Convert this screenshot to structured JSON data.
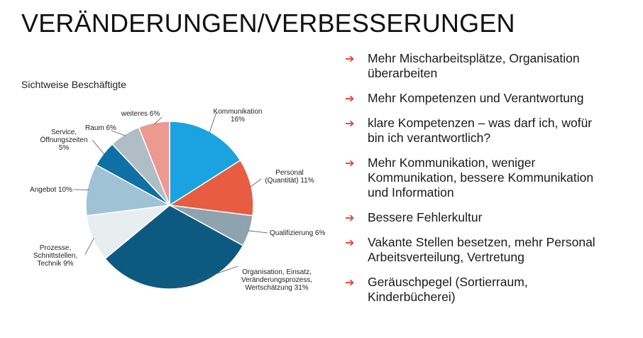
{
  "slide": {
    "title": "VERÄNDERUNGEN/VERBESSERUNGEN"
  },
  "chart_data": {
    "type": "pie",
    "title": "Sichtweise Beschäftigte",
    "slices": [
      {
        "label": [
          "Kommunikation",
          "16%"
        ],
        "value": 16,
        "color": "#1aa3e0"
      },
      {
        "label": [
          "Personal",
          "(Quantität) 11%"
        ],
        "value": 11,
        "color": "#e85c42"
      },
      {
        "label": [
          "Qualifizierung 6%"
        ],
        "value": 6,
        "color": "#8ea3ae"
      },
      {
        "label": [
          "Organisation, Einsatz,",
          "Veränderungsprozess,",
          "Wertschätzung 31%"
        ],
        "value": 31,
        "color": "#0d5a80"
      },
      {
        "label": [
          "Prozesse,",
          "Schnittstellen,",
          "Technik 9%"
        ],
        "value": 9,
        "color": "#e8edf0"
      },
      {
        "label": [
          "Angebot 10%"
        ],
        "value": 10,
        "color": "#9fc2d4"
      },
      {
        "label": [
          "Service,",
          "Öffnungszeiten",
          "5%"
        ],
        "value": 5,
        "color": "#0d71a6"
      },
      {
        "label": [
          "Raum 6%"
        ],
        "value": 6,
        "color": "#b0bdc4"
      },
      {
        "label": [
          "weiteres 6%"
        ],
        "value": 6,
        "color": "#ec9990"
      }
    ]
  },
  "bullets": {
    "arrow_icon": "arrow-right-icon",
    "arrow_glyph": "➔",
    "arrow_color": "#e8442e",
    "items": [
      [
        "Mehr Mischarbeitsplätze, Organisation",
        "überarbeiten"
      ],
      [
        "Mehr Kompetenzen und Verantwortung"
      ],
      [
        "klare Kompetenzen – was darf ich, wofür",
        "bin ich verantwortlich?"
      ],
      [
        "Mehr Kommunikation, weniger",
        "Kommunikation, bessere Kommunikation",
        "und Information"
      ],
      [
        "Bessere Fehlerkultur"
      ],
      [
        "Vakante Stellen besetzen, mehr Personal",
        "Arbeitsverteilung, Vertretung"
      ],
      [
        "Geräuschpegel (Sortierraum,",
        "Kinderbücherei)"
      ]
    ]
  }
}
